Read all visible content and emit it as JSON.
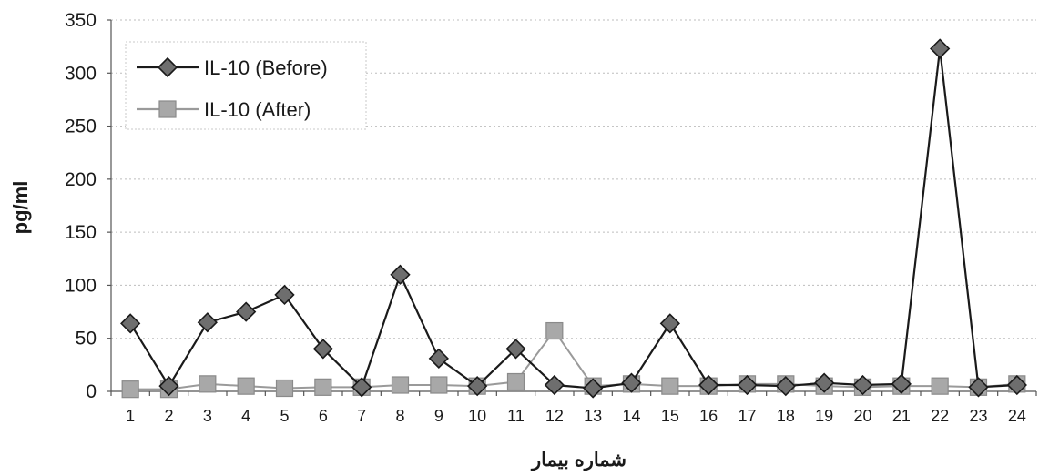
{
  "chart_data": {
    "type": "line",
    "title": "",
    "xlabel": "شماره بیمار",
    "ylabel": "pg/ml",
    "ylim": [
      0,
      350
    ],
    "yticks": [
      0,
      50,
      100,
      150,
      200,
      250,
      300,
      350
    ],
    "grid": true,
    "legend_position": "top-left",
    "categories": [
      "1",
      "2",
      "3",
      "4",
      "5",
      "6",
      "7",
      "8",
      "9",
      "10",
      "11",
      "12",
      "13",
      "14",
      "15",
      "16",
      "17",
      "18",
      "19",
      "20",
      "21",
      "22",
      "23",
      "24"
    ],
    "series": [
      {
        "name": "IL-10 (Before)",
        "color": "#1a1a1a",
        "marker": "diamond",
        "values": [
          64,
          5,
          65,
          75,
          91,
          40,
          4,
          110,
          31,
          5,
          40,
          6,
          3,
          8,
          64,
          6,
          6,
          5,
          8,
          6,
          7,
          323,
          4,
          6
        ]
      },
      {
        "name": "IL-10 (After)",
        "color": "#9a9a9a",
        "marker": "square",
        "values": [
          2,
          2,
          7,
          5,
          3,
          4,
          4,
          6,
          6,
          5,
          9,
          57,
          5,
          7,
          5,
          5,
          7,
          7,
          5,
          4,
          5,
          5,
          4,
          7
        ]
      }
    ]
  }
}
